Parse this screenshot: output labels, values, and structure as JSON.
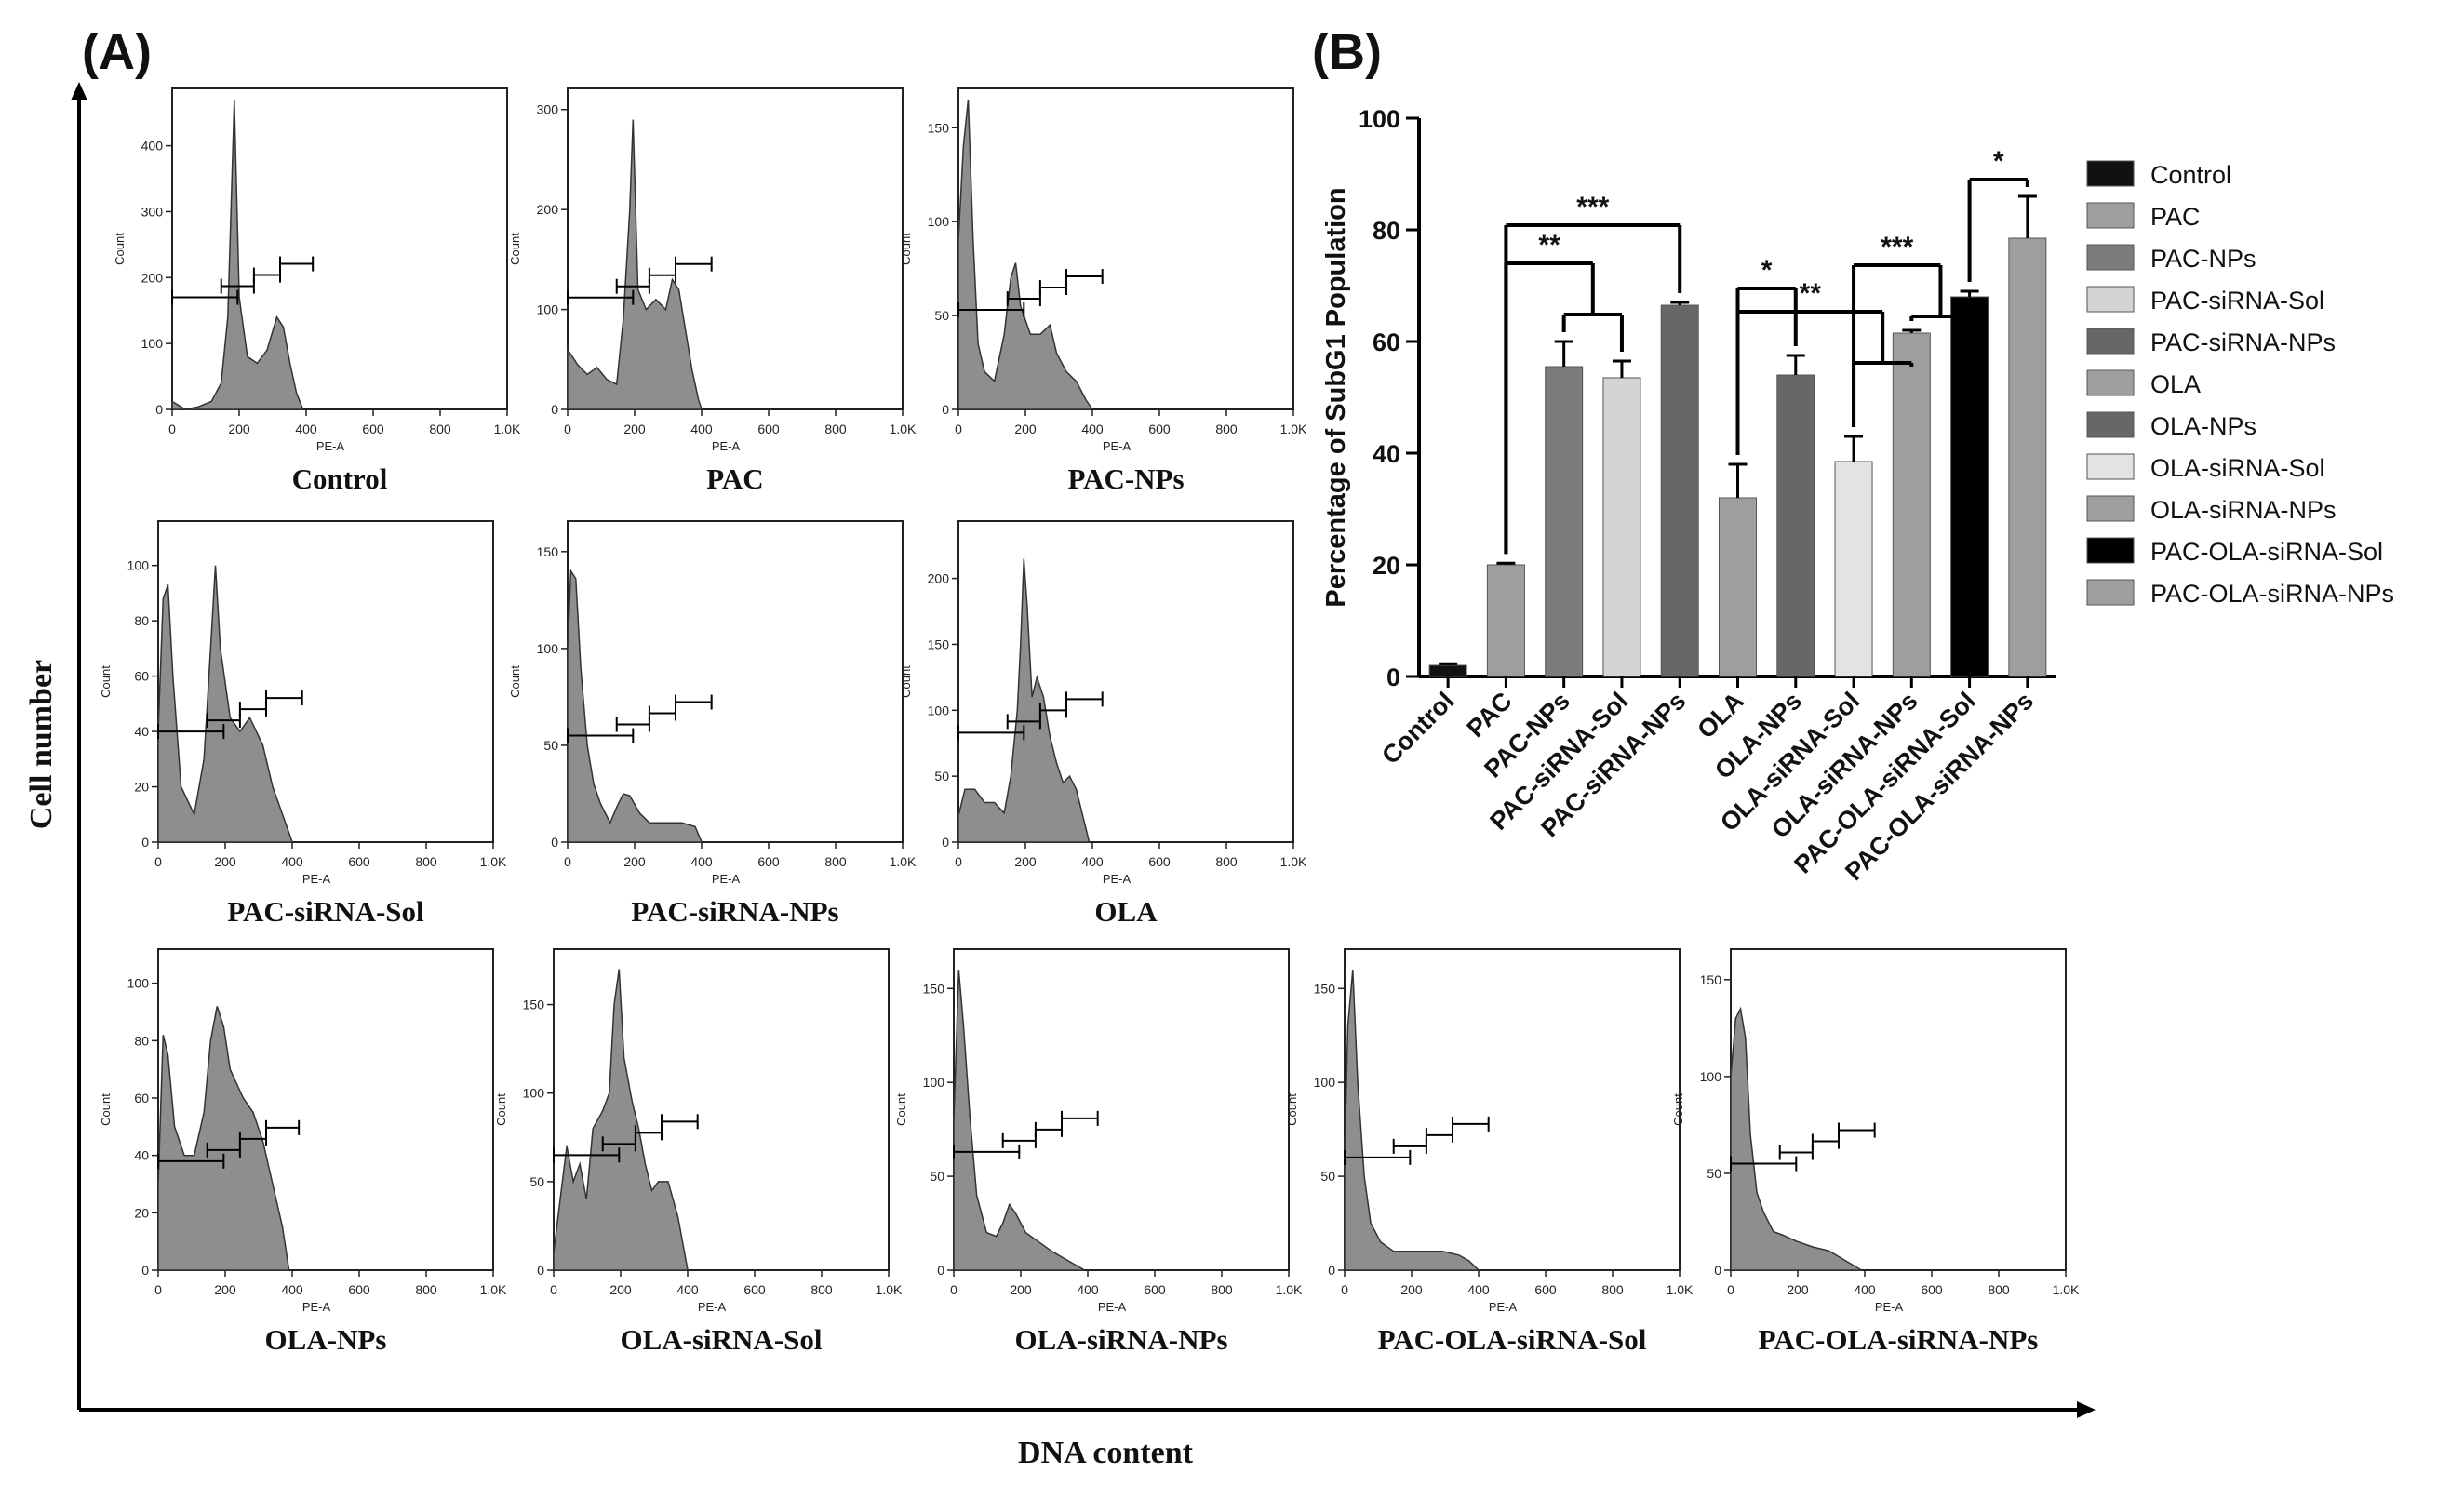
{
  "panel_a": {
    "label": "(A)",
    "y_axis_title": "Cell number",
    "x_axis_title": "DNA content",
    "x_tick_labels": [
      "0",
      "200",
      "400",
      "600",
      "800",
      "1.0K"
    ],
    "x_label": "PE-A",
    "y_label": "Count",
    "histograms": [
      {
        "title": "Control",
        "y_max": 470,
        "y_ticks": [
          "0",
          "100",
          "200",
          "300",
          "400"
        ],
        "profile": [
          [
            0,
            12
          ],
          [
            20,
            6
          ],
          [
            40,
            0
          ],
          [
            80,
            4
          ],
          [
            120,
            12
          ],
          [
            150,
            40
          ],
          [
            170,
            140
          ],
          [
            190,
            470
          ],
          [
            205,
            170
          ],
          [
            230,
            80
          ],
          [
            260,
            70
          ],
          [
            290,
            90
          ],
          [
            320,
            140
          ],
          [
            340,
            125
          ],
          [
            360,
            70
          ],
          [
            380,
            25
          ],
          [
            400,
            0
          ]
        ],
        "gates": [
          [
            0,
            200
          ],
          [
            150,
            250
          ],
          [
            250,
            330
          ],
          [
            330,
            430
          ]
        ],
        "gate_y": 170
      },
      {
        "title": "PAC",
        "y_max": 310,
        "y_ticks": [
          "0",
          "100",
          "200",
          "300"
        ],
        "profile": [
          [
            0,
            60
          ],
          [
            30,
            45
          ],
          [
            60,
            35
          ],
          [
            90,
            42
          ],
          [
            120,
            30
          ],
          [
            150,
            25
          ],
          [
            170,
            90
          ],
          [
            190,
            200
          ],
          [
            200,
            290
          ],
          [
            215,
            120
          ],
          [
            240,
            100
          ],
          [
            270,
            110
          ],
          [
            300,
            100
          ],
          [
            320,
            130
          ],
          [
            340,
            120
          ],
          [
            360,
            80
          ],
          [
            380,
            40
          ],
          [
            400,
            10
          ],
          [
            410,
            0
          ]
        ],
        "gates": [
          [
            0,
            200
          ],
          [
            150,
            250
          ],
          [
            250,
            330
          ],
          [
            330,
            440
          ]
        ],
        "gate_y": 112
      },
      {
        "title": "PAC-NPs",
        "y_max": 165,
        "y_ticks": [
          "0",
          "50",
          "100",
          "150"
        ],
        "profile": [
          [
            0,
            90
          ],
          [
            15,
            140
          ],
          [
            30,
            165
          ],
          [
            45,
            90
          ],
          [
            60,
            35
          ],
          [
            80,
            20
          ],
          [
            110,
            15
          ],
          [
            140,
            40
          ],
          [
            160,
            70
          ],
          [
            175,
            78
          ],
          [
            190,
            55
          ],
          [
            220,
            40
          ],
          [
            250,
            40
          ],
          [
            280,
            45
          ],
          [
            300,
            30
          ],
          [
            330,
            20
          ],
          [
            360,
            15
          ],
          [
            390,
            5
          ],
          [
            410,
            0
          ]
        ],
        "gates": [
          [
            0,
            200
          ],
          [
            150,
            250
          ],
          [
            250,
            330
          ],
          [
            330,
            440
          ]
        ],
        "gate_y": 53
      },
      {
        "title": "PAC-siRNA-Sol",
        "y_max": 112,
        "y_ticks": [
          "0",
          "20",
          "40",
          "60",
          "80",
          "100"
        ],
        "profile": [
          [
            0,
            40
          ],
          [
            15,
            88
          ],
          [
            30,
            93
          ],
          [
            45,
            60
          ],
          [
            70,
            20
          ],
          [
            110,
            10
          ],
          [
            140,
            30
          ],
          [
            160,
            70
          ],
          [
            175,
            100
          ],
          [
            190,
            70
          ],
          [
            220,
            45
          ],
          [
            250,
            40
          ],
          [
            280,
            45
          ],
          [
            300,
            40
          ],
          [
            320,
            35
          ],
          [
            350,
            20
          ],
          [
            380,
            10
          ],
          [
            410,
            0
          ]
        ],
        "gates": [
          [
            0,
            200
          ],
          [
            150,
            250
          ],
          [
            250,
            330
          ],
          [
            330,
            440
          ]
        ],
        "gate_y": 40
      },
      {
        "title": "PAC-siRNA-NPs",
        "y_max": 160,
        "y_ticks": [
          "0",
          "50",
          "100",
          "150"
        ],
        "profile": [
          [
            0,
            100
          ],
          [
            10,
            140
          ],
          [
            25,
            136
          ],
          [
            40,
            90
          ],
          [
            60,
            50
          ],
          [
            80,
            30
          ],
          [
            100,
            20
          ],
          [
            130,
            10
          ],
          [
            150,
            18
          ],
          [
            170,
            25
          ],
          [
            190,
            24
          ],
          [
            220,
            15
          ],
          [
            250,
            10
          ],
          [
            300,
            10
          ],
          [
            350,
            10
          ],
          [
            390,
            8
          ],
          [
            410,
            0
          ]
        ],
        "gates": [
          [
            0,
            200
          ],
          [
            150,
            250
          ],
          [
            250,
            330
          ],
          [
            330,
            440
          ]
        ],
        "gate_y": 55
      },
      {
        "title": "OLA",
        "y_max": 235,
        "y_ticks": [
          "0",
          "50",
          "100",
          "150",
          "200"
        ],
        "profile": [
          [
            0,
            20
          ],
          [
            20,
            40
          ],
          [
            50,
            40
          ],
          [
            80,
            30
          ],
          [
            110,
            30
          ],
          [
            140,
            22
          ],
          [
            160,
            50
          ],
          [
            180,
            100
          ],
          [
            190,
            150
          ],
          [
            200,
            215
          ],
          [
            210,
            180
          ],
          [
            225,
            110
          ],
          [
            240,
            125
          ],
          [
            260,
            110
          ],
          [
            280,
            80
          ],
          [
            300,
            60
          ],
          [
            320,
            45
          ],
          [
            340,
            50
          ],
          [
            360,
            40
          ],
          [
            380,
            20
          ],
          [
            400,
            0
          ]
        ],
        "gates": [
          [
            0,
            200
          ],
          [
            150,
            250
          ],
          [
            250,
            330
          ],
          [
            330,
            440
          ]
        ],
        "gate_y": 83
      },
      {
        "title": "OLA-NPs",
        "y_max": 108,
        "y_ticks": [
          "0",
          "20",
          "40",
          "60",
          "80",
          "100"
        ],
        "profile": [
          [
            0,
            30
          ],
          [
            15,
            82
          ],
          [
            30,
            75
          ],
          [
            50,
            50
          ],
          [
            80,
            40
          ],
          [
            110,
            40
          ],
          [
            140,
            55
          ],
          [
            160,
            80
          ],
          [
            180,
            92
          ],
          [
            200,
            85
          ],
          [
            220,
            70
          ],
          [
            260,
            60
          ],
          [
            290,
            55
          ],
          [
            320,
            45
          ],
          [
            350,
            30
          ],
          [
            380,
            15
          ],
          [
            400,
            0
          ]
        ],
        "gates": [
          [
            0,
            200
          ],
          [
            150,
            250
          ],
          [
            250,
            330
          ],
          [
            330,
            430
          ]
        ],
        "gate_y": 38
      },
      {
        "title": "OLA-siRNA-Sol",
        "y_max": 175,
        "y_ticks": [
          "0",
          "50",
          "100",
          "150"
        ],
        "profile": [
          [
            0,
            10
          ],
          [
            20,
            40
          ],
          [
            40,
            70
          ],
          [
            60,
            50
          ],
          [
            80,
            60
          ],
          [
            100,
            40
          ],
          [
            120,
            80
          ],
          [
            150,
            90
          ],
          [
            170,
            100
          ],
          [
            185,
            150
          ],
          [
            200,
            170
          ],
          [
            215,
            120
          ],
          [
            240,
            95
          ],
          [
            260,
            80
          ],
          [
            280,
            60
          ],
          [
            300,
            45
          ],
          [
            320,
            50
          ],
          [
            350,
            50
          ],
          [
            380,
            30
          ],
          [
            410,
            0
          ]
        ],
        "gates": [
          [
            0,
            200
          ],
          [
            150,
            250
          ],
          [
            250,
            330
          ],
          [
            330,
            440
          ]
        ],
        "gate_y": 65
      },
      {
        "title": "OLA-siRNA-NPs",
        "y_max": 165,
        "y_ticks": [
          "0",
          "50",
          "100",
          "150"
        ],
        "profile": [
          [
            0,
            80
          ],
          [
            15,
            160
          ],
          [
            30,
            130
          ],
          [
            50,
            80
          ],
          [
            70,
            40
          ],
          [
            100,
            20
          ],
          [
            130,
            18
          ],
          [
            150,
            25
          ],
          [
            170,
            35
          ],
          [
            190,
            30
          ],
          [
            220,
            20
          ],
          [
            260,
            15
          ],
          [
            300,
            10
          ],
          [
            350,
            5
          ],
          [
            400,
            0
          ]
        ],
        "gates": [
          [
            0,
            200
          ],
          [
            150,
            250
          ],
          [
            250,
            330
          ],
          [
            330,
            440
          ]
        ],
        "gate_y": 63
      },
      {
        "title": "PAC-OLA-siRNA-Sol",
        "y_max": 165,
        "y_ticks": [
          "0",
          "50",
          "100",
          "150"
        ],
        "profile": [
          [
            0,
            60
          ],
          [
            10,
            130
          ],
          [
            25,
            160
          ],
          [
            40,
            100
          ],
          [
            60,
            50
          ],
          [
            80,
            25
          ],
          [
            110,
            15
          ],
          [
            150,
            10
          ],
          [
            200,
            10
          ],
          [
            250,
            10
          ],
          [
            300,
            10
          ],
          [
            350,
            8
          ],
          [
            380,
            5
          ],
          [
            410,
            0
          ]
        ],
        "gates": [
          [
            0,
            200
          ],
          [
            150,
            250
          ],
          [
            250,
            330
          ],
          [
            330,
            440
          ]
        ],
        "gate_y": 60
      },
      {
        "title": "PAC-OLA-siRNA-NPs",
        "y_max": 160,
        "y_ticks": [
          "0",
          "50",
          "100",
          "150"
        ],
        "profile": [
          [
            0,
            100
          ],
          [
            15,
            130
          ],
          [
            30,
            135
          ],
          [
            45,
            120
          ],
          [
            60,
            70
          ],
          [
            80,
            40
          ],
          [
            100,
            30
          ],
          [
            130,
            20
          ],
          [
            160,
            18
          ],
          [
            200,
            15
          ],
          [
            250,
            12
          ],
          [
            300,
            10
          ],
          [
            350,
            5
          ],
          [
            400,
            0
          ]
        ],
        "gates": [
          [
            0,
            200
          ],
          [
            150,
            250
          ],
          [
            250,
            330
          ],
          [
            330,
            440
          ]
        ],
        "gate_y": 55
      }
    ]
  },
  "chart_data": {
    "type": "bar",
    "panel_label": "(B)",
    "title": "",
    "ylabel": "Percentage of SubG1 Population",
    "xlabel": "",
    "ylim": [
      0,
      100
    ],
    "y_ticks": [
      0,
      20,
      40,
      60,
      80,
      100
    ],
    "categories": [
      "Control",
      "PAC",
      "PAC-NPs",
      "PAC-siRNA-Sol",
      "PAC-siRNA-NPs",
      "OLA",
      "OLA-NPs",
      "OLA-siRNA-Sol",
      "OLA-siRNA-NPs",
      "PAC-OLA-siRNA-Sol",
      "PAC-OLA-siRNA-NPs"
    ],
    "values": [
      2,
      20,
      55.5,
      53.5,
      66.5,
      32,
      54,
      38.5,
      61.5,
      68,
      78.5
    ],
    "errors": [
      0.3,
      0.3,
      4.5,
      3,
      0.5,
      6,
      3.5,
      4.5,
      0.5,
      1,
      7.5
    ],
    "colors": [
      "#111111",
      "#9e9e9e",
      "#7c7c7c",
      "#d4d4d4",
      "#676767",
      "#9e9e9e",
      "#676767",
      "#e3e3e3",
      "#9e9e9e",
      "#000000",
      "#9e9e9e"
    ],
    "legend_position": "right",
    "significance": [
      {
        "label": "**",
        "from": 1,
        "to": [
          2,
          3
        ]
      },
      {
        "label": "***",
        "from": 1,
        "to": [
          4
        ]
      },
      {
        "label": "*",
        "from": 5,
        "to": [
          6
        ]
      },
      {
        "label": "**",
        "from": 5,
        "to": [
          7,
          8
        ]
      },
      {
        "label": "***",
        "from": 7,
        "to": [
          8,
          9
        ]
      },
      {
        "label": "*",
        "from": 9,
        "to": [
          10
        ]
      }
    ]
  }
}
